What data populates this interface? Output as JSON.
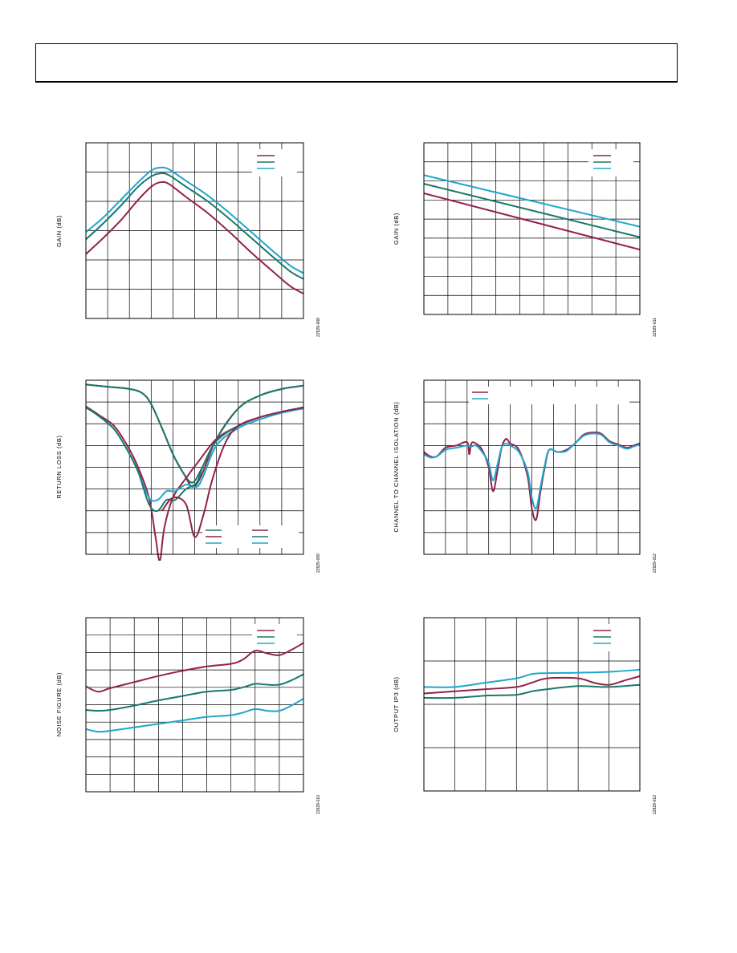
{
  "colors": {
    "magenta": "#93214a",
    "teal": "#19796c",
    "cyan": "#1ea6cc",
    "frame": "#000000",
    "grid": "#000000"
  },
  "chart_data": [
    {
      "type": "line",
      "ylabel": "GAIN (dB)",
      "figure_id": "22929-008",
      "grid": {
        "cols": 10,
        "rows": 6
      },
      "xlim": [
        0,
        10
      ],
      "ylim": [
        0,
        6
      ],
      "legend": {
        "position": "top-right",
        "entries": 3
      },
      "series": [
        {
          "color": "cyan",
          "x": [
            0,
            0.8,
            1.6,
            2.4,
            3.0,
            3.4,
            3.8,
            4.6,
            5.6,
            6.6,
            7.6,
            8.6,
            9.4,
            10
          ],
          "y": [
            2.95,
            3.45,
            4.05,
            4.65,
            5.05,
            5.15,
            5.1,
            4.7,
            4.2,
            3.6,
            2.95,
            2.3,
            1.8,
            1.55
          ]
        },
        {
          "color": "teal",
          "x": [
            0,
            0.8,
            1.6,
            2.4,
            3.0,
            3.4,
            3.8,
            4.6,
            5.6,
            6.6,
            7.6,
            8.6,
            9.4,
            10
          ],
          "y": [
            2.7,
            3.25,
            3.85,
            4.5,
            4.85,
            4.95,
            4.9,
            4.5,
            4.0,
            3.4,
            2.75,
            2.1,
            1.6,
            1.35
          ]
        },
        {
          "color": "magenta",
          "x": [
            0,
            0.8,
            1.6,
            2.4,
            3.0,
            3.4,
            3.8,
            4.6,
            5.6,
            6.6,
            7.6,
            8.6,
            9.4,
            10
          ],
          "y": [
            2.2,
            2.75,
            3.35,
            4.05,
            4.5,
            4.65,
            4.6,
            4.15,
            3.6,
            2.95,
            2.25,
            1.6,
            1.1,
            0.85
          ]
        }
      ]
    },
    {
      "type": "line",
      "ylabel": "GAIN (dB)",
      "figure_id": "22929-011",
      "grid": {
        "cols": 9,
        "rows": 9
      },
      "xlim": [
        0,
        9
      ],
      "ylim": [
        0,
        9
      ],
      "legend": {
        "position": "top-right",
        "entries": 3
      },
      "series": [
        {
          "color": "cyan",
          "x": [
            0,
            9
          ],
          "y": [
            7.3,
            4.6
          ]
        },
        {
          "color": "teal",
          "x": [
            0,
            9
          ],
          "y": [
            6.85,
            4.05
          ]
        },
        {
          "color": "magenta",
          "x": [
            0,
            9
          ],
          "y": [
            6.35,
            3.4
          ]
        }
      ]
    },
    {
      "type": "line",
      "ylabel": "RETURN LOSS (dB)",
      "figure_id": "22929-009",
      "grid": {
        "cols": 10,
        "rows": 8
      },
      "xlim": [
        0,
        10
      ],
      "ylim": [
        0,
        8
      ],
      "legend": {
        "position": "bottom-right",
        "entries": 6
      },
      "series": [
        {
          "color": "magenta",
          "x": [
            0,
            1,
            2,
            2.6,
            3.0,
            3.5,
            4.0,
            4.5,
            4.9,
            5.3,
            6,
            7,
            8,
            9,
            10
          ],
          "y": [
            7.8,
            7.7,
            7.6,
            7.4,
            6.9,
            5.8,
            4.6,
            3.7,
            3.1,
            3.6,
            5.3,
            6.7,
            7.3,
            7.6,
            7.75
          ]
        },
        {
          "color": "teal",
          "x": [
            0,
            1,
            2,
            2.6,
            3.0,
            3.5,
            4.0,
            4.5,
            4.9,
            5.3,
            6,
            7,
            8,
            9,
            10
          ],
          "y": [
            7.8,
            7.7,
            7.6,
            7.4,
            6.9,
            5.8,
            4.6,
            3.7,
            3.3,
            3.9,
            5.3,
            6.7,
            7.3,
            7.6,
            7.75
          ]
        },
        {
          "color": "magenta",
          "x": [
            0,
            0.6,
            1.3,
            1.9,
            2.4,
            2.9,
            3.2,
            3.4,
            3.6,
            4.0,
            4.6,
            5.2,
            6,
            7,
            8,
            9,
            10
          ],
          "y": [
            6.8,
            6.4,
            5.9,
            5.0,
            4.0,
            2.6,
            0.8,
            -0.3,
            1.2,
            2.6,
            3.5,
            4.3,
            5.3,
            5.9,
            6.3,
            6.55,
            6.75
          ]
        },
        {
          "color": "cyan",
          "x": [
            0,
            0.6,
            1.3,
            1.9,
            2.4,
            2.9,
            3.3,
            3.7,
            4.1,
            4.6,
            5.1,
            5.4,
            6,
            7,
            8,
            9,
            10
          ],
          "y": [
            6.75,
            6.35,
            5.75,
            4.8,
            3.8,
            2.6,
            2.5,
            2.9,
            2.9,
            3.2,
            3.1,
            3.6,
            5.0,
            5.8,
            6.2,
            6.5,
            6.7
          ]
        },
        {
          "color": "teal",
          "x": [
            0,
            0.6,
            1.3,
            1.9,
            2.4,
            2.9,
            3.3,
            3.7,
            4.1,
            4.6,
            5.1,
            5.4,
            6,
            7,
            8,
            9,
            10
          ],
          "y": [
            6.75,
            6.35,
            5.75,
            4.8,
            3.8,
            2.3,
            2.0,
            2.5,
            2.5,
            3.0,
            3.3,
            4.1,
            5.2,
            5.9,
            6.3,
            6.55,
            6.75
          ]
        },
        {
          "color": "magenta",
          "x": [
            3.5,
            4.0,
            4.6,
            5.0,
            5.4,
            5.8,
            6.4,
            7,
            8,
            9,
            10
          ],
          "y": [
            2.0,
            2.6,
            2.3,
            0.8,
            1.8,
            3.4,
            5.1,
            5.9,
            6.3,
            6.55,
            6.75
          ]
        }
      ]
    },
    {
      "type": "line",
      "ylabel": "CHANNEL TO CHANNEL ISOLATION (dB)",
      "figure_id": "22929-012",
      "grid": {
        "cols": 10,
        "rows": 8
      },
      "xlim": [
        0,
        10
      ],
      "ylim": [
        0,
        8
      ],
      "legend": {
        "position": "top-left",
        "entries": 2
      },
      "series": [
        {
          "color": "magenta",
          "x": [
            0,
            0.3,
            0.6,
            1.0,
            1.5,
            2.0,
            2.1,
            2.2,
            2.4,
            2.7,
            3.0,
            3.2,
            3.4,
            3.6,
            3.8,
            4.0,
            4.4,
            4.8,
            5.0,
            5.2,
            5.4,
            5.6,
            5.8,
            6.2,
            6.6,
            7.0,
            7.4,
            7.8,
            8.2,
            8.6,
            9.0,
            9.4,
            9.7,
            10
          ],
          "y": [
            4.7,
            4.5,
            4.5,
            4.9,
            5.0,
            5.15,
            4.6,
            5.1,
            5.1,
            4.8,
            4.0,
            2.9,
            3.8,
            4.9,
            5.3,
            5.1,
            4.8,
            3.6,
            2.1,
            1.6,
            2.9,
            4.0,
            4.8,
            4.7,
            4.8,
            5.1,
            5.5,
            5.6,
            5.55,
            5.2,
            5.05,
            4.9,
            5.0,
            5.1
          ]
        },
        {
          "color": "cyan",
          "x": [
            0,
            0.3,
            0.6,
            1.0,
            1.5,
            2.0,
            2.2,
            2.4,
            2.7,
            3.0,
            3.2,
            3.4,
            3.6,
            3.8,
            4.0,
            4.4,
            4.8,
            5.0,
            5.2,
            5.4,
            5.6,
            5.8,
            6.2,
            6.6,
            7.0,
            7.4,
            7.8,
            8.2,
            8.6,
            9.0,
            9.4,
            9.7,
            10
          ],
          "y": [
            4.6,
            4.45,
            4.5,
            4.8,
            4.9,
            5.0,
            4.95,
            5.0,
            4.7,
            4.2,
            3.4,
            4.1,
            4.9,
            5.1,
            5.0,
            4.7,
            3.8,
            2.6,
            2.1,
            3.1,
            4.1,
            4.8,
            4.7,
            4.75,
            5.1,
            5.45,
            5.55,
            5.5,
            5.15,
            5.0,
            4.85,
            4.95,
            5.05
          ]
        }
      ]
    },
    {
      "type": "line",
      "ylabel": "NOISE FIGURE (dB)",
      "figure_id": "22929-010",
      "grid": {
        "cols": 9,
        "rows": 10
      },
      "xlim": [
        0,
        9
      ],
      "ylim": [
        0,
        10
      ],
      "legend": {
        "position": "top-right",
        "entries": 3
      },
      "series": [
        {
          "color": "magenta",
          "x": [
            0,
            0.5,
            1,
            2,
            3,
            4,
            5,
            6,
            6.5,
            7,
            7.5,
            8,
            8.5,
            9
          ],
          "y": [
            6.05,
            5.75,
            5.95,
            6.3,
            6.65,
            6.95,
            7.2,
            7.35,
            7.6,
            8.1,
            7.95,
            7.85,
            8.15,
            8.55
          ]
        },
        {
          "color": "teal",
          "x": [
            0,
            0.5,
            1,
            2,
            3,
            4,
            5,
            6,
            6.5,
            7,
            7.5,
            8,
            8.5,
            9
          ],
          "y": [
            4.7,
            4.65,
            4.7,
            4.95,
            5.25,
            5.5,
            5.75,
            5.85,
            6.0,
            6.2,
            6.15,
            6.15,
            6.4,
            6.75
          ]
        },
        {
          "color": "cyan",
          "x": [
            0,
            0.5,
            1,
            2,
            3,
            4,
            5,
            6,
            6.5,
            7,
            7.5,
            8,
            8.5,
            9
          ],
          "y": [
            3.6,
            3.45,
            3.5,
            3.7,
            3.9,
            4.1,
            4.3,
            4.4,
            4.55,
            4.75,
            4.65,
            4.65,
            4.95,
            5.35
          ]
        }
      ]
    },
    {
      "type": "line",
      "ylabel": "OUTPUT IP3 (dB)",
      "figure_id": "22929-013",
      "grid": {
        "cols": 7,
        "rows": 4
      },
      "xlim": [
        0,
        7
      ],
      "ylim": [
        0,
        4
      ],
      "legend": {
        "position": "top-right",
        "entries": 3
      },
      "series": [
        {
          "color": "cyan",
          "x": [
            0,
            1,
            2,
            3,
            3.5,
            4,
            5,
            6,
            7
          ],
          "y": [
            2.4,
            2.4,
            2.5,
            2.6,
            2.7,
            2.72,
            2.73,
            2.75,
            2.8
          ]
        },
        {
          "color": "teal",
          "x": [
            0,
            1,
            2,
            3,
            3.5,
            4,
            5,
            6,
            7
          ],
          "y": [
            2.15,
            2.15,
            2.2,
            2.22,
            2.3,
            2.35,
            2.42,
            2.4,
            2.45
          ]
        },
        {
          "color": "magenta",
          "x": [
            0,
            1,
            2,
            3,
            3.5,
            4,
            5,
            5.5,
            6,
            6.5,
            7
          ],
          "y": [
            2.25,
            2.3,
            2.35,
            2.4,
            2.5,
            2.6,
            2.6,
            2.5,
            2.45,
            2.55,
            2.65
          ]
        }
      ]
    }
  ]
}
